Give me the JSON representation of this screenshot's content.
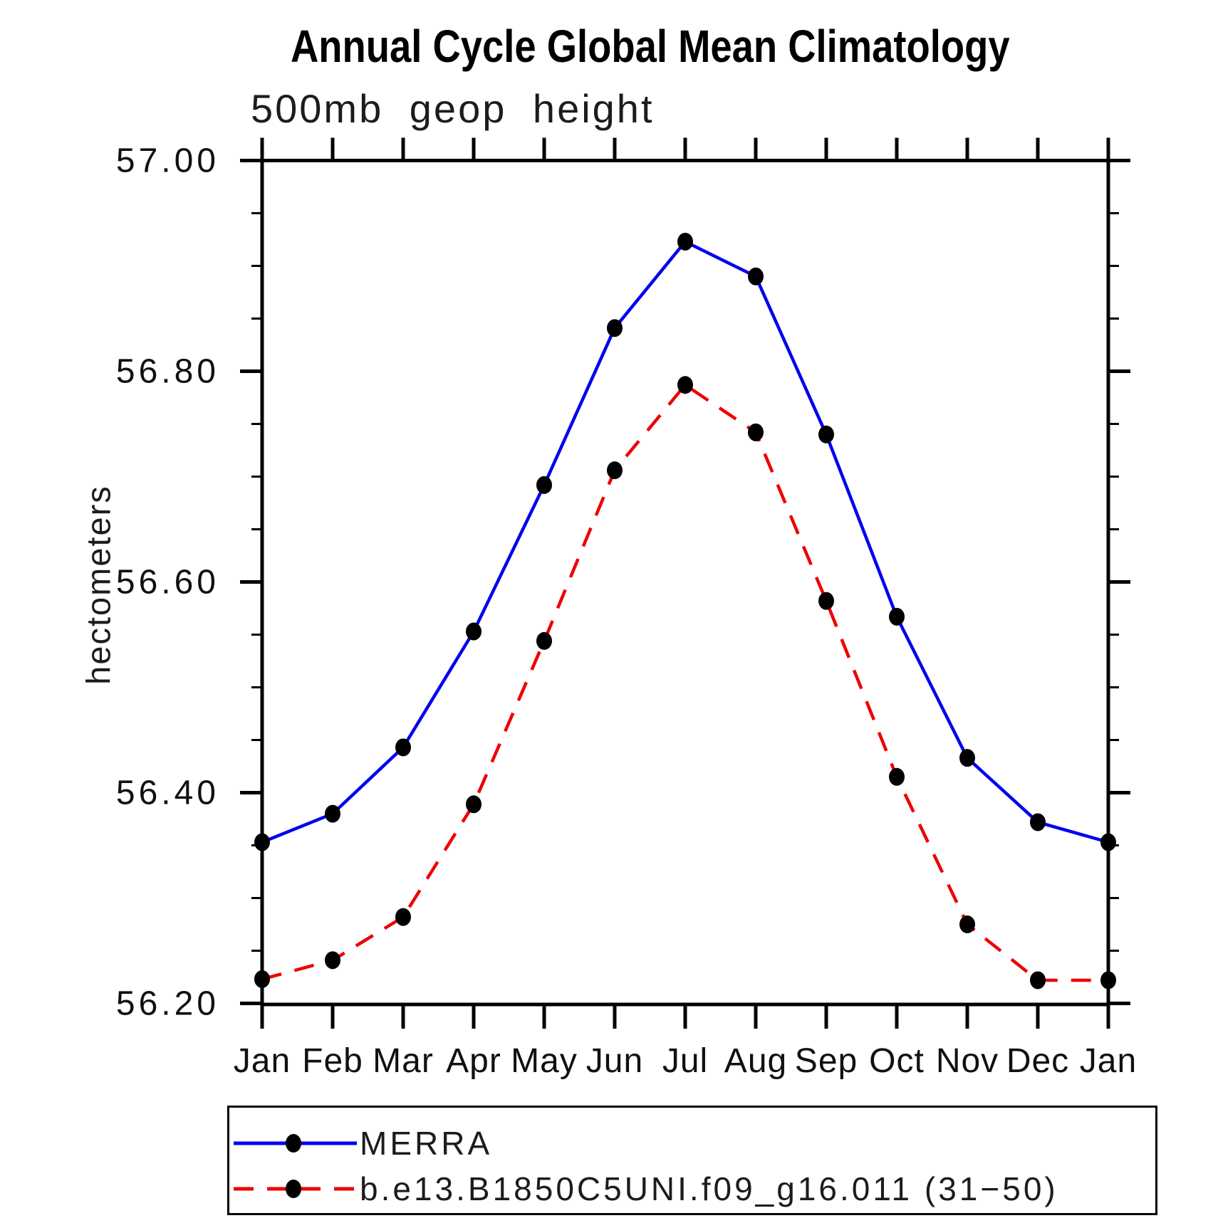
{
  "chart_data": {
    "type": "line",
    "title": "Annual Cycle Global Mean Climatology",
    "subtitle": "500mb geop height",
    "ylabel": "hectometers",
    "xlabel": "",
    "categories": [
      "Jan",
      "Feb",
      "Mar",
      "Apr",
      "May",
      "Jun",
      "Jul",
      "Aug",
      "Sep",
      "Oct",
      "Nov",
      "Dec",
      "Jan"
    ],
    "series": [
      {
        "name": "MERRA",
        "color": "#0000ee",
        "line_style": "solid",
        "marker": "circle",
        "marker_color": "#000000",
        "values": [
          56.353,
          56.38,
          56.443,
          56.553,
          56.692,
          56.841,
          56.923,
          56.89,
          56.74,
          56.567,
          56.433,
          56.372,
          56.353
        ]
      },
      {
        "name": "b.e13.B1850C5UNI.f09_g16.011 (31−50)",
        "color": "#ee0000",
        "line_style": "dashed",
        "marker": "circle",
        "marker_color": "#000000",
        "values": [
          56.223,
          56.241,
          56.282,
          56.389,
          56.544,
          56.706,
          56.787,
          56.742,
          56.582,
          56.415,
          56.275,
          56.222,
          56.222
        ]
      }
    ],
    "ylim": [
      56.2,
      57.0
    ],
    "yticks": [
      57.0,
      56.8,
      56.6,
      56.4,
      56.2
    ],
    "ytick_labels": [
      "57.00",
      "56.80",
      "56.60",
      "56.40",
      "56.20"
    ],
    "minor_tick_interval": 0.05,
    "grid": false,
    "legend_position": "bottom-left"
  },
  "legend": {
    "entries": [
      {
        "label": "MERRA"
      },
      {
        "label": "b.e13.B1850C5UNI.f09_g16.011 (31−50)"
      }
    ]
  }
}
